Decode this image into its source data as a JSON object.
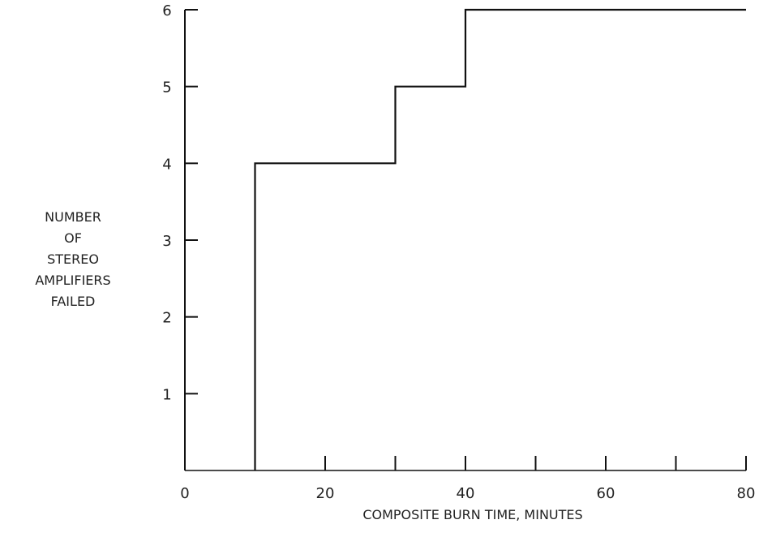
{
  "chart_data": {
    "type": "line",
    "step": true,
    "xlabel": "COMPOSITE BURN TIME, MINUTES",
    "ylabel_lines": [
      "NUMBER",
      "OF",
      "STEREO",
      "AMPLIFIERS",
      "FAILED"
    ],
    "xlim": [
      0,
      80
    ],
    "ylim": [
      0,
      6
    ],
    "x_ticks": [
      10,
      20,
      30,
      40,
      50,
      60,
      70,
      80
    ],
    "x_tick_labels": [
      {
        "value": 0,
        "label": "0"
      },
      {
        "value": 20,
        "label": "20"
      },
      {
        "value": 40,
        "label": "40"
      },
      {
        "value": 60,
        "label": "60"
      },
      {
        "value": 80,
        "label": "80"
      }
    ],
    "y_ticks": [
      1,
      2,
      3,
      4,
      5,
      6
    ],
    "y_tick_labels": [
      "1",
      "2",
      "3",
      "4",
      "5",
      "6"
    ],
    "grid": false,
    "series": [
      {
        "points": [
          [
            10,
            0
          ],
          [
            10,
            4
          ],
          [
            30,
            4
          ],
          [
            30,
            5
          ],
          [
            40,
            5
          ],
          [
            40,
            6
          ],
          [
            80,
            6
          ]
        ]
      }
    ]
  }
}
